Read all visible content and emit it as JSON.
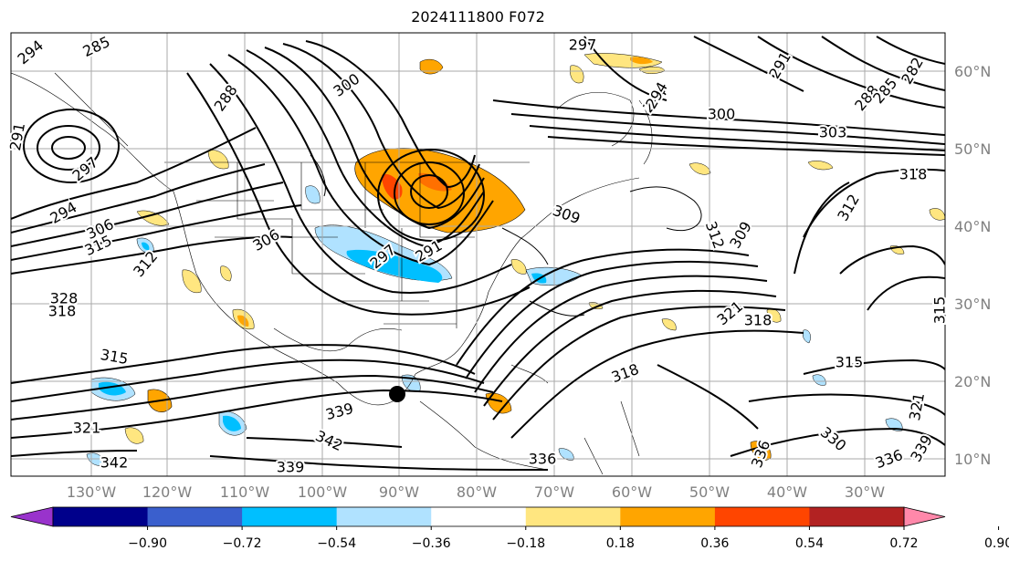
{
  "title": "2024111800 F072",
  "map": {
    "lon_labels": [
      "130°W",
      "120°W",
      "110°W",
      "100°W",
      "90°W",
      "80°W",
      "70°W",
      "60°W",
      "50°W",
      "40°W",
      "30°W"
    ],
    "lat_labels": [
      "60°N",
      "50°N",
      "40°N",
      "30°N",
      "20°N",
      "10°N"
    ],
    "contour_labels": [
      {
        "text": "294"
      },
      {
        "text": "285"
      },
      {
        "text": "288"
      },
      {
        "text": "300"
      },
      {
        "text": "297"
      },
      {
        "text": "294"
      },
      {
        "text": "300"
      },
      {
        "text": "303"
      },
      {
        "text": "294"
      },
      {
        "text": "291"
      },
      {
        "text": "288"
      },
      {
        "text": "285"
      },
      {
        "text": "282"
      },
      {
        "text": "291"
      },
      {
        "text": "297"
      },
      {
        "text": "294"
      },
      {
        "text": "306"
      },
      {
        "text": "315"
      },
      {
        "text": "306"
      },
      {
        "text": "297"
      },
      {
        "text": "291"
      },
      {
        "text": "309"
      },
      {
        "text": "312"
      },
      {
        "text": "309"
      },
      {
        "text": "318"
      },
      {
        "text": "312"
      },
      {
        "text": "312"
      },
      {
        "text": "328"
      },
      {
        "text": "318"
      },
      {
        "text": "321"
      },
      {
        "text": "318"
      },
      {
        "text": "315"
      },
      {
        "text": "315"
      },
      {
        "text": "315"
      },
      {
        "text": "318"
      },
      {
        "text": "321"
      },
      {
        "text": "342"
      },
      {
        "text": "339"
      },
      {
        "text": "342"
      },
      {
        "text": "336"
      },
      {
        "text": "339"
      },
      {
        "text": "330"
      },
      {
        "text": "336"
      },
      {
        "text": "336"
      },
      {
        "text": "339"
      },
      {
        "text": "321"
      }
    ]
  },
  "colorbar": {
    "tick_labels": [
      "−0.90",
      "−0.72",
      "−0.54",
      "−0.36",
      "−0.18",
      "0.18",
      "0.36",
      "0.54",
      "0.72",
      "0.90"
    ],
    "colors": [
      "#9933cc",
      "#00008b",
      "#3a5fcd",
      "#00bfff",
      "#b0e2ff",
      "#ffffff",
      "#ffe680",
      "#ffa500",
      "#ff4500",
      "#b22222",
      "#ff88aa"
    ]
  }
}
